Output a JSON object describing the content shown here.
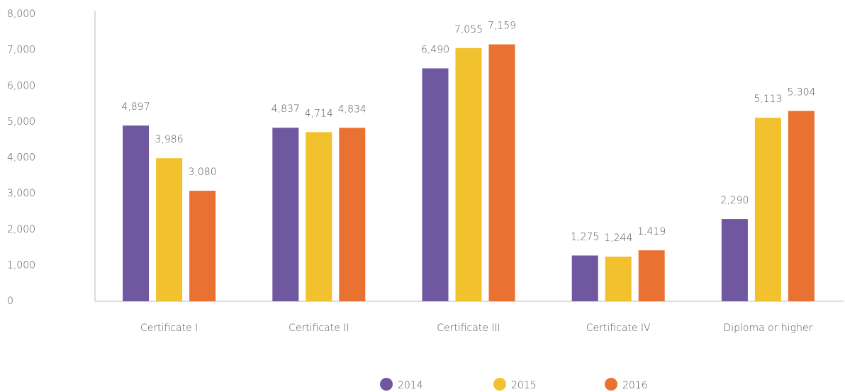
{
  "chart_data": {
    "type": "bar",
    "categories": [
      "Certificate I",
      "Certificate II",
      "Certificate III",
      "Certificate IV",
      "Diploma or higher"
    ],
    "series": [
      {
        "name": "2014",
        "color": "#6f58a0",
        "values": [
          4897,
          4837,
          6490,
          1275,
          2290
        ],
        "value_labels": [
          "4,897",
          "4,837",
          "6,490",
          "1,275",
          "2,290"
        ]
      },
      {
        "name": "2015",
        "color": "#f2c12e",
        "values": [
          3986,
          4714,
          7055,
          1244,
          5113
        ],
        "value_labels": [
          "3,986",
          "4,714",
          "7,055",
          "1,244",
          "5,113"
        ]
      },
      {
        "name": "2016",
        "color": "#e97132",
        "values": [
          3080,
          4834,
          7159,
          1419,
          5304
        ],
        "value_labels": [
          "3,080",
          "4,834",
          "7,159",
          "1,419",
          "5,304"
        ]
      }
    ],
    "ylim": [
      0,
      8000
    ],
    "yticks": [
      0,
      {
        "value": 1000,
        "label": "1,000"
      },
      {
        "value": 2000,
        "label": "2,000"
      },
      {
        "value": 3000,
        "label": "3,000"
      },
      {
        "value": 4000,
        "label": "4,000"
      },
      {
        "value": 5000,
        "label": "5,000"
      },
      {
        "value": 6000,
        "label": "6,000"
      },
      {
        "value": 7000,
        "label": "7,000"
      },
      {
        "value": 8000,
        "label": "8,000"
      }
    ],
    "grid": false,
    "legend": "bottom"
  }
}
